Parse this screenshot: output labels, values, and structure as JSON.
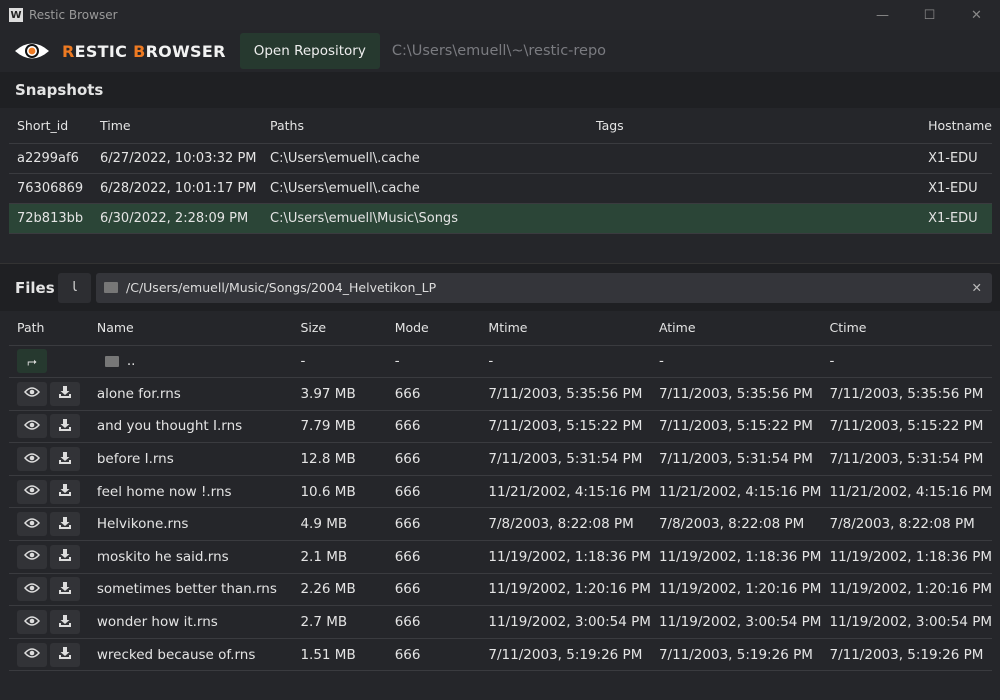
{
  "window": {
    "title": "Restic Browser",
    "logo_letter": "W",
    "minimize": "—",
    "maximize": "☐",
    "close": "✕"
  },
  "header": {
    "brand_first": "R",
    "brand_rest1": "ESTIC ",
    "brand_b": "B",
    "brand_rest2": "ROWSER",
    "open_button": "Open Repository",
    "repo_path": "C:\\Users\\emuell\\~\\restic-repo"
  },
  "snapshots": {
    "title": "Snapshots",
    "columns": [
      "Short_id",
      "Time",
      "Paths",
      "Tags",
      "Hostname"
    ],
    "rows": [
      {
        "id": "a2299af6",
        "time": "6/27/2022, 10:03:32 PM",
        "paths": "C:\\Users\\emuell\\.cache",
        "tags": "",
        "host": "X1-EDU"
      },
      {
        "id": "76306869",
        "time": "6/28/2022, 10:01:17 PM",
        "paths": "C:\\Users\\emuell\\.cache",
        "tags": "",
        "host": "X1-EDU"
      },
      {
        "id": "72b813bb",
        "time": "6/30/2022, 2:28:09 PM",
        "paths": "C:\\Users\\emuell\\Music\\Songs",
        "tags": "",
        "host": "X1-EDU",
        "selected": true
      }
    ]
  },
  "files": {
    "title": "Files",
    "up_icon": "Ꙇ",
    "path": "/C/Users/emuell/Music/Songs/2004_Helvetikon_LP",
    "clear": "✕",
    "columns": [
      "Path",
      "Name",
      "Size",
      "Mode",
      "Mtime",
      "Atime",
      "Ctime"
    ],
    "parent": {
      "name": "..",
      "size": "-",
      "mode": "-",
      "mtime": "-",
      "atime": "-",
      "ctime": "-"
    },
    "rows": [
      {
        "name": "alone for.rns",
        "size": "3.97 MB",
        "mode": "666",
        "mtime": "7/11/2003, 5:35:56 PM",
        "atime": "7/11/2003, 5:35:56 PM",
        "ctime": "7/11/2003, 5:35:56 PM"
      },
      {
        "name": "and you thought I.rns",
        "size": "7.79 MB",
        "mode": "666",
        "mtime": "7/11/2003, 5:15:22 PM",
        "atime": "7/11/2003, 5:15:22 PM",
        "ctime": "7/11/2003, 5:15:22 PM"
      },
      {
        "name": "before I.rns",
        "size": "12.8 MB",
        "mode": "666",
        "mtime": "7/11/2003, 5:31:54 PM",
        "atime": "7/11/2003, 5:31:54 PM",
        "ctime": "7/11/2003, 5:31:54 PM"
      },
      {
        "name": "feel home now !.rns",
        "size": "10.6 MB",
        "mode": "666",
        "mtime": "11/21/2002, 4:15:16 PM",
        "atime": "11/21/2002, 4:15:16 PM",
        "ctime": "11/21/2002, 4:15:16 PM"
      },
      {
        "name": "Helvikone.rns",
        "size": "4.9 MB",
        "mode": "666",
        "mtime": "7/8/2003, 8:22:08 PM",
        "atime": "7/8/2003, 8:22:08 PM",
        "ctime": "7/8/2003, 8:22:08 PM"
      },
      {
        "name": "moskito he said.rns",
        "size": "2.1 MB",
        "mode": "666",
        "mtime": "11/19/2002, 1:18:36 PM",
        "atime": "11/19/2002, 1:18:36 PM",
        "ctime": "11/19/2002, 1:18:36 PM"
      },
      {
        "name": "sometimes better than.rns",
        "size": "2.26 MB",
        "mode": "666",
        "mtime": "11/19/2002, 1:20:16 PM",
        "atime": "11/19/2002, 1:20:16 PM",
        "ctime": "11/19/2002, 1:20:16 PM"
      },
      {
        "name": "wonder how it.rns",
        "size": "2.7 MB",
        "mode": "666",
        "mtime": "11/19/2002, 3:00:54 PM",
        "atime": "11/19/2002, 3:00:54 PM",
        "ctime": "11/19/2002, 3:00:54 PM"
      },
      {
        "name": "wrecked because of.rns",
        "size": "1.51 MB",
        "mode": "666",
        "mtime": "7/11/2003, 5:19:26 PM",
        "atime": "7/11/2003, 5:19:26 PM",
        "ctime": "7/11/2003, 5:19:26 PM"
      }
    ]
  }
}
